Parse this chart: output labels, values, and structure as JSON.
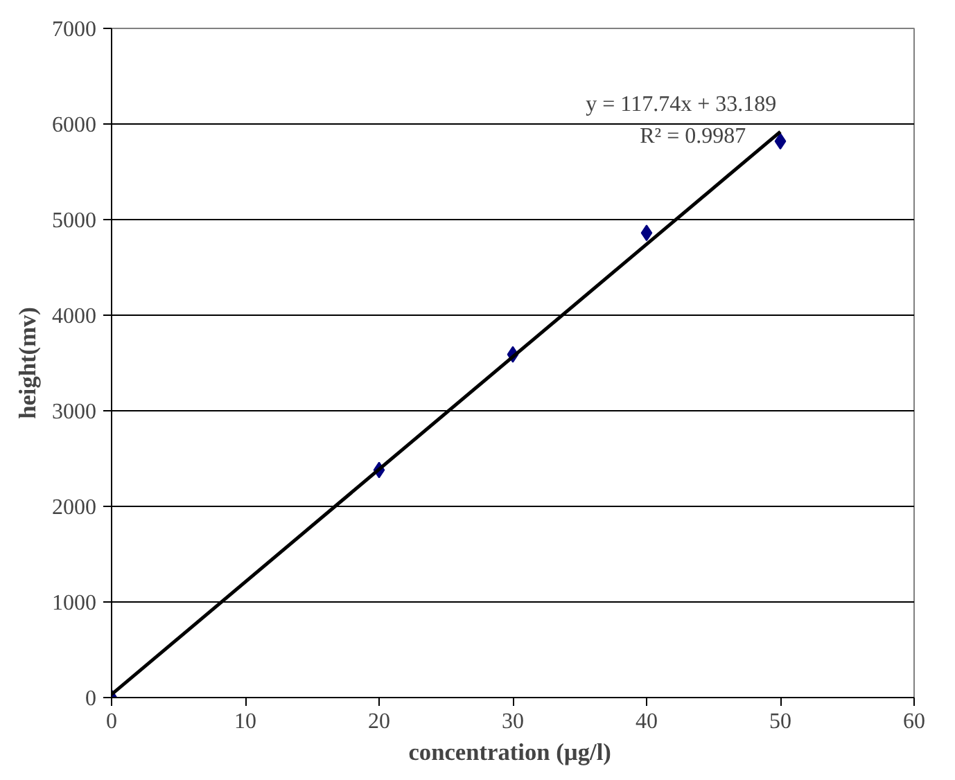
{
  "chart_data": {
    "type": "scatter",
    "xlabel": "concentration  (µg/l)",
    "ylabel": "height(mv)",
    "xlim": [
      0,
      60
    ],
    "xticks": [
      0,
      10,
      20,
      30,
      40,
      50,
      60
    ],
    "ylim": [
      0,
      7000
    ],
    "yticks": [
      0,
      1000,
      2000,
      3000,
      4000,
      5000,
      6000,
      7000
    ],
    "grid": "y",
    "series": [
      {
        "marker": "diamond",
        "color": "#000080",
        "x": [
          0,
          20,
          30,
          40,
          50
        ],
        "values": [
          0,
          2380,
          3590,
          4860,
          5820
        ]
      },
      {
        "type": "line",
        "color": "#000000",
        "x": [
          0,
          50
        ],
        "values": [
          33,
          5920
        ],
        "marker": "none",
        "line_style": "solid"
      }
    ],
    "annotations": [
      "y = 117.74x + 33.189",
      "R² = 0.9987"
    ]
  }
}
